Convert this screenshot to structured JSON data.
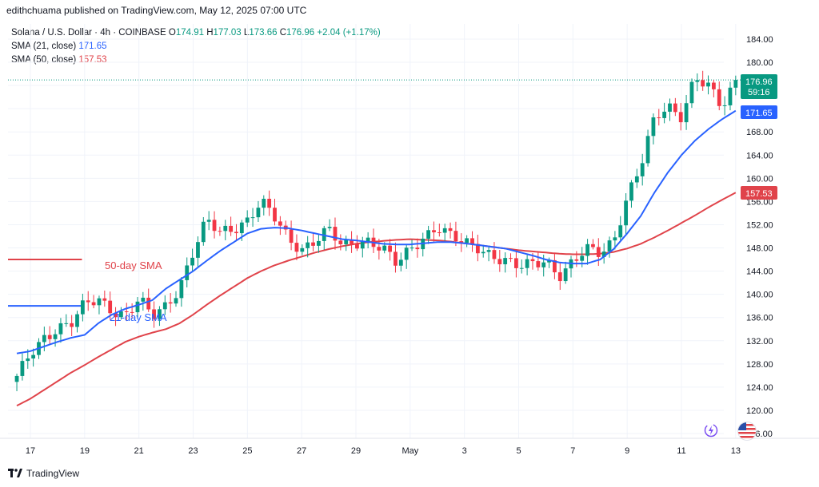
{
  "header": {
    "publisher_text": "edithchuama published on TradingView.com, May 12, 2025 07:00 UTC"
  },
  "legend": {
    "symbol_line": "Solana / U.S. Dollar · 4h · COINBASE",
    "open_label": "O",
    "open": "174.91",
    "high_label": "H",
    "high": "177.03",
    "low_label": "L",
    "low": "173.66",
    "close_label": "C",
    "close": "176.96",
    "change": "+2.04 (+1.17%)",
    "sma21_label": "SMA (21, close)",
    "sma21_value": "171.65",
    "sma50_label": "SMA (50, close)",
    "sma50_value": "157.53"
  },
  "badges": {
    "price": "176.96",
    "countdown": "59:16",
    "sma21": "171.65",
    "sma50": "157.53"
  },
  "annotations": {
    "sma50_text": "50-day SMA",
    "sma21_text": "21-day SMA"
  },
  "footer": {
    "brand": "TradingView"
  },
  "icons": {
    "bolt": "lightning-icon",
    "flag": "us-flag-icon"
  },
  "colors": {
    "up": "#089981",
    "down": "#f23645",
    "sma21": "#2962ff",
    "sma50": "#e0434a",
    "grid": "#f0f3fa"
  },
  "chart_data": {
    "type": "candlestick",
    "title": "",
    "y_ticks": [
      "116.00",
      "120.00",
      "124.00",
      "128.00",
      "132.00",
      "136.00",
      "140.00",
      "144.00",
      "148.00",
      "152.00",
      "156.00",
      "160.00",
      "164.00",
      "168.00",
      "172.00",
      "176.00",
      "180.00",
      "184.00"
    ],
    "ylim": [
      114,
      187
    ],
    "x_ticks": [
      {
        "label": "17",
        "t": 0.5
      },
      {
        "label": "19",
        "t": 2.5
      },
      {
        "label": "21",
        "t": 4.5
      },
      {
        "label": "23",
        "t": 6.5
      },
      {
        "label": "25",
        "t": 8.5
      },
      {
        "label": "27",
        "t": 10.5
      },
      {
        "label": "29",
        "t": 12.5
      },
      {
        "label": "May",
        "t": 14.5
      },
      {
        "label": "3",
        "t": 16.5
      },
      {
        "label": "5",
        "t": 18.5
      },
      {
        "label": "7",
        "t": 20.5
      },
      {
        "label": "9",
        "t": 22.5
      },
      {
        "label": "11",
        "t": 24.5
      },
      {
        "label": "13",
        "t": 26.5
      }
    ],
    "close_anchors": [
      [
        0,
        125.5
      ],
      [
        0.5,
        129.5
      ],
      [
        1,
        132.5
      ],
      [
        1.5,
        134.5
      ],
      [
        2,
        135
      ],
      [
        2.5,
        138
      ],
      [
        3,
        139
      ],
      [
        3.5,
        137.5
      ],
      [
        4,
        136.5
      ],
      [
        4.5,
        139
      ],
      [
        5,
        136
      ],
      [
        5.5,
        138
      ],
      [
        6,
        141.5
      ],
      [
        6.5,
        147.5
      ],
      [
        7,
        152.5
      ],
      [
        7.5,
        150.5
      ],
      [
        8,
        151.5
      ],
      [
        8.5,
        153
      ],
      [
        9,
        156
      ],
      [
        9.5,
        153
      ],
      [
        10,
        149.5
      ],
      [
        10.5,
        148
      ],
      [
        11,
        149.5
      ],
      [
        11.5,
        151
      ],
      [
        12,
        148
      ],
      [
        12.5,
        149
      ],
      [
        13,
        149.5
      ],
      [
        13.5,
        148
      ],
      [
        14,
        145
      ],
      [
        14.5,
        147.5
      ],
      [
        15,
        150
      ],
      [
        15.5,
        152
      ],
      [
        16,
        150
      ],
      [
        16.5,
        148.5
      ],
      [
        17,
        148
      ],
      [
        17.5,
        147
      ],
      [
        18,
        146
      ],
      [
        18.5,
        144.5
      ],
      [
        19,
        145
      ],
      [
        19.5,
        146
      ],
      [
        20,
        143.5
      ],
      [
        20.5,
        145.5
      ],
      [
        21,
        147.5
      ],
      [
        21.5,
        147
      ],
      [
        22,
        149.5
      ],
      [
        22.5,
        157
      ],
      [
        23,
        162
      ],
      [
        23.5,
        170
      ],
      [
        24,
        172.5
      ],
      [
        24.5,
        171
      ],
      [
        25,
        177.5
      ],
      [
        25.5,
        175.5
      ],
      [
        26,
        172
      ],
      [
        26.5,
        176.96
      ]
    ],
    "sma21_anchors": [
      [
        0,
        129.8
      ],
      [
        0.5,
        130.2
      ],
      [
        1,
        131
      ],
      [
        1.5,
        131.8
      ],
      [
        2,
        132.5
      ],
      [
        2.5,
        133
      ],
      [
        3,
        135
      ],
      [
        3.5,
        136.5
      ],
      [
        4,
        137.5
      ],
      [
        4.5,
        138.2
      ],
      [
        5,
        139
      ],
      [
        5.5,
        141
      ],
      [
        6,
        142.5
      ],
      [
        6.5,
        144
      ],
      [
        7,
        145.8
      ],
      [
        7.5,
        147.5
      ],
      [
        8,
        149
      ],
      [
        8.5,
        150.5
      ],
      [
        9,
        151.3
      ],
      [
        9.5,
        151.5
      ],
      [
        10,
        151.4
      ],
      [
        10.5,
        151
      ],
      [
        11,
        150.5
      ],
      [
        11.5,
        150
      ],
      [
        12,
        149.5
      ],
      [
        12.5,
        149.3
      ],
      [
        13,
        149
      ],
      [
        13.5,
        148.7
      ],
      [
        14,
        148.6
      ],
      [
        14.5,
        148.6
      ],
      [
        15,
        148.8
      ],
      [
        15.5,
        149
      ],
      [
        16,
        149
      ],
      [
        16.5,
        148.8
      ],
      [
        17,
        148.5
      ],
      [
        17.5,
        148.2
      ],
      [
        18,
        147.9
      ],
      [
        18.5,
        147.3
      ],
      [
        19,
        146.7
      ],
      [
        19.5,
        146
      ],
      [
        20,
        145.5
      ],
      [
        20.5,
        145.3
      ],
      [
        21,
        145.3
      ],
      [
        21.5,
        146
      ],
      [
        22,
        147.8
      ],
      [
        22.5,
        150.5
      ],
      [
        23,
        153.5
      ],
      [
        23.5,
        157.5
      ],
      [
        24,
        161
      ],
      [
        24.5,
        164
      ],
      [
        25,
        166.5
      ],
      [
        25.5,
        168.5
      ],
      [
        26,
        170.2
      ],
      [
        26.5,
        171.65
      ]
    ],
    "sma50_anchors": [
      [
        0,
        120.8
      ],
      [
        0.5,
        122
      ],
      [
        1,
        123.5
      ],
      [
        1.5,
        125
      ],
      [
        2,
        126.5
      ],
      [
        2.5,
        127.8
      ],
      [
        3,
        129.2
      ],
      [
        3.5,
        130.5
      ],
      [
        4,
        131.8
      ],
      [
        4.5,
        132.7
      ],
      [
        5,
        133.4
      ],
      [
        5.5,
        134
      ],
      [
        6,
        135
      ],
      [
        6.5,
        136.5
      ],
      [
        7,
        138.2
      ],
      [
        7.5,
        139.8
      ],
      [
        8,
        141.3
      ],
      [
        8.5,
        142.8
      ],
      [
        9,
        144
      ],
      [
        9.5,
        145
      ],
      [
        10,
        145.8
      ],
      [
        10.5,
        146.5
      ],
      [
        11,
        147.2
      ],
      [
        11.5,
        147.8
      ],
      [
        12,
        148.3
      ],
      [
        12.5,
        148.7
      ],
      [
        13,
        149
      ],
      [
        13.5,
        149.2
      ],
      [
        14,
        149.4
      ],
      [
        14.5,
        149.5
      ],
      [
        15,
        149.4
      ],
      [
        15.5,
        149.3
      ],
      [
        16,
        149.1
      ],
      [
        16.5,
        148.8
      ],
      [
        17,
        148.5
      ],
      [
        17.5,
        148.2
      ],
      [
        18,
        147.9
      ],
      [
        18.5,
        147.6
      ],
      [
        19,
        147.4
      ],
      [
        19.5,
        147.2
      ],
      [
        20,
        147
      ],
      [
        20.5,
        146.9
      ],
      [
        21,
        146.9
      ],
      [
        21.5,
        147
      ],
      [
        22,
        147.3
      ],
      [
        22.5,
        147.9
      ],
      [
        23,
        148.7
      ],
      [
        23.5,
        149.8
      ],
      [
        24,
        151
      ],
      [
        24.5,
        152.3
      ],
      [
        25,
        153.6
      ],
      [
        25.5,
        155
      ],
      [
        26,
        156.3
      ],
      [
        26.5,
        157.53
      ]
    ],
    "stub_sma50": {
      "value": 146,
      "t_end": 2.4
    },
    "stub_sma21": {
      "value": 138,
      "t_end": 2.4
    },
    "last_close": 176.96
  }
}
